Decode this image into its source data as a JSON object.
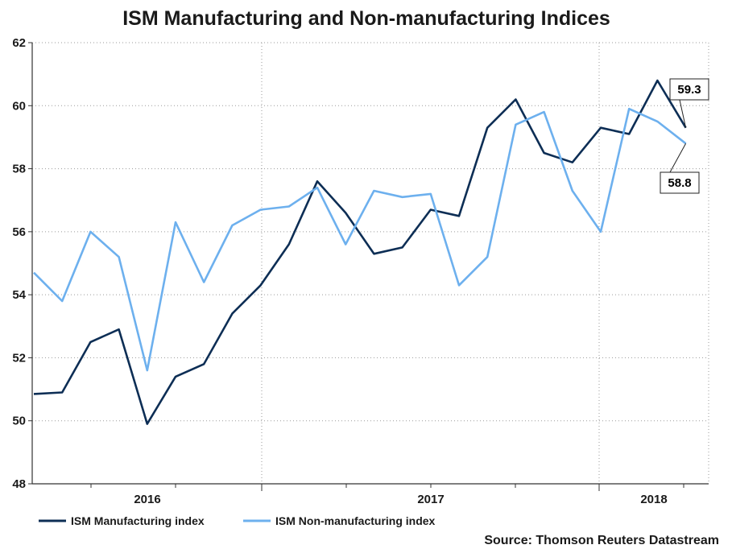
{
  "chart_data": {
    "type": "line",
    "title": "ISM Manufacturing and Non-manufacturing Indices",
    "xlabel": "",
    "ylabel": "",
    "ylim": [
      48,
      62
    ],
    "yticks": [
      48,
      50,
      52,
      54,
      56,
      58,
      60,
      62
    ],
    "x_tick_labels": [
      "2016",
      "2017",
      "2018"
    ],
    "grid": true,
    "legend_position": "bottom-left",
    "series": [
      {
        "name": "ISM Manufacturing index",
        "color": "#0d2e55",
        "values": [
          50.85,
          50.9,
          52.5,
          52.9,
          49.9,
          51.4,
          51.8,
          53.4,
          54.3,
          55.6,
          57.6,
          56.6,
          55.3,
          55.5,
          56.7,
          56.5,
          59.3,
          60.2,
          58.5,
          58.2,
          59.3,
          59.1,
          60.8,
          59.3
        ]
      },
      {
        "name": "ISM Non-manufacturing index",
        "color": "#6db0ee",
        "values": [
          54.7,
          53.8,
          56.0,
          55.2,
          51.6,
          56.3,
          54.4,
          56.2,
          56.7,
          56.8,
          57.4,
          55.6,
          57.3,
          57.1,
          57.2,
          54.3,
          55.2,
          59.4,
          59.8,
          57.3,
          56.0,
          59.9,
          59.5,
          58.8
        ]
      }
    ],
    "callouts": [
      {
        "label": "59.3",
        "series": 0
      },
      {
        "label": "58.8",
        "series": 1
      }
    ]
  },
  "source": "Source: Thomson Reuters Datastream"
}
